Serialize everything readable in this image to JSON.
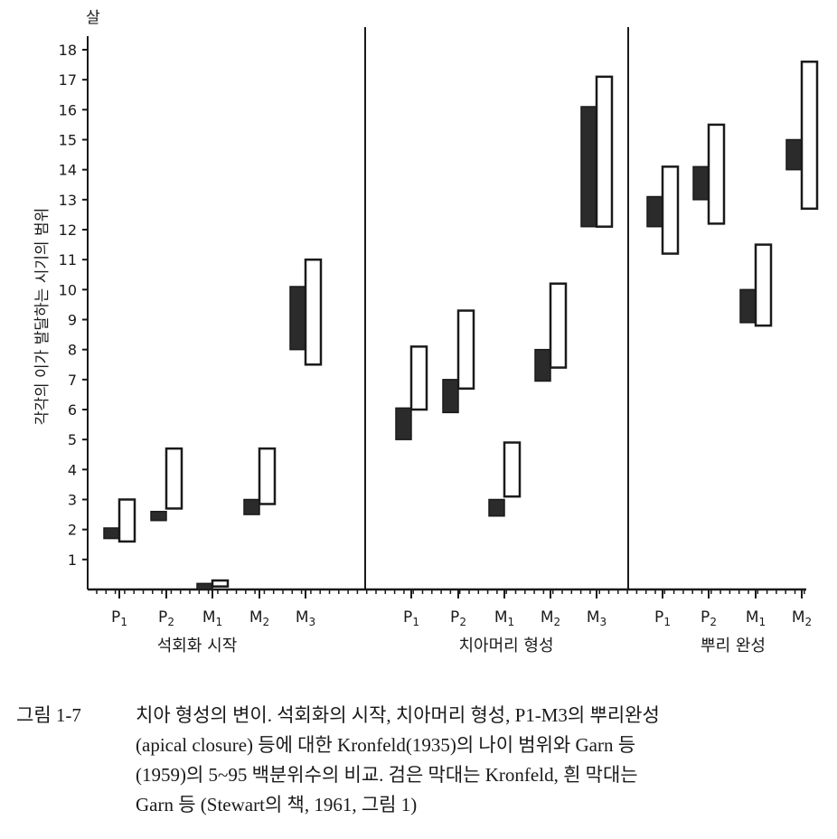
{
  "chart_data": {
    "type": "range-bar",
    "ylabel": "각각의 이가 발달하는 시기의 범위",
    "yunit": "살",
    "ylim": [
      0,
      18
    ],
    "yticks": [
      1,
      2,
      3,
      4,
      5,
      6,
      7,
      8,
      9,
      10,
      11,
      12,
      13,
      14,
      15,
      16,
      17,
      18
    ],
    "legend": {
      "black": "Kronfeld",
      "white": "Garn 등"
    },
    "panels": [
      {
        "title": "석회화 시작",
        "teeth": [
          {
            "label": "P",
            "sub": "1",
            "black": [
              1.7,
              2.05
            ],
            "white": [
              1.6,
              3.0
            ]
          },
          {
            "label": "P",
            "sub": "2",
            "black": [
              2.3,
              2.6
            ],
            "white": [
              2.7,
              4.7
            ]
          },
          {
            "label": "M",
            "sub": "1",
            "black": [
              0.0,
              0.2
            ],
            "white": [
              0.1,
              0.3
            ]
          },
          {
            "label": "M",
            "sub": "2",
            "black": [
              2.5,
              3.0
            ],
            "white": [
              2.85,
              4.7
            ]
          },
          {
            "label": "M",
            "sub": "3",
            "black": [
              8.0,
              10.1
            ],
            "white": [
              7.5,
              11.0
            ]
          }
        ]
      },
      {
        "title": "치아머리 형성",
        "teeth": [
          {
            "label": "P",
            "sub": "1",
            "black": [
              5.0,
              6.05
            ],
            "white": [
              6.0,
              8.1
            ]
          },
          {
            "label": "P",
            "sub": "2",
            "black": [
              5.9,
              7.0
            ],
            "white": [
              6.7,
              9.3
            ]
          },
          {
            "label": "M",
            "sub": "1",
            "black": [
              2.45,
              3.0
            ],
            "white": [
              3.1,
              4.9
            ]
          },
          {
            "label": "M",
            "sub": "2",
            "black": [
              6.95,
              8.0
            ],
            "white": [
              7.4,
              10.2
            ]
          },
          {
            "label": "M",
            "sub": "3",
            "black": [
              12.1,
              16.1
            ],
            "white": [
              12.1,
              17.1
            ]
          }
        ]
      },
      {
        "title": "뿌리 완성",
        "teeth": [
          {
            "label": "P",
            "sub": "1",
            "black": [
              12.1,
              13.1
            ],
            "white": [
              11.2,
              14.1
            ]
          },
          {
            "label": "P",
            "sub": "2",
            "black": [
              13.0,
              14.1
            ],
            "white": [
              12.2,
              15.5
            ]
          },
          {
            "label": "M",
            "sub": "1",
            "black": [
              8.9,
              10.0
            ],
            "white": [
              8.8,
              11.5
            ]
          },
          {
            "label": "M",
            "sub": "2",
            "black": [
              14.0,
              15.0
            ],
            "white": [
              12.7,
              17.6
            ]
          }
        ]
      }
    ]
  },
  "caption": {
    "label": "그림 1-7",
    "lines": [
      "치아 형성의 변이. 석회화의 시작, 치아머리 형성, P1-M3의 뿌리완성",
      "(apical closure) 등에 대한 Kronfeld(1935)의 나이 범위와 Garn 등",
      "(1959)의 5~95 백분위수의 비교. 검은 막대는 Kronfeld, 흰 막대는",
      "Garn 등 (Stewart의 책, 1961, 그림 1)"
    ]
  },
  "colors": {
    "ink": "#1a1a1a",
    "black_bar": "#2b2b2b",
    "white_bar": "#ffffff"
  }
}
